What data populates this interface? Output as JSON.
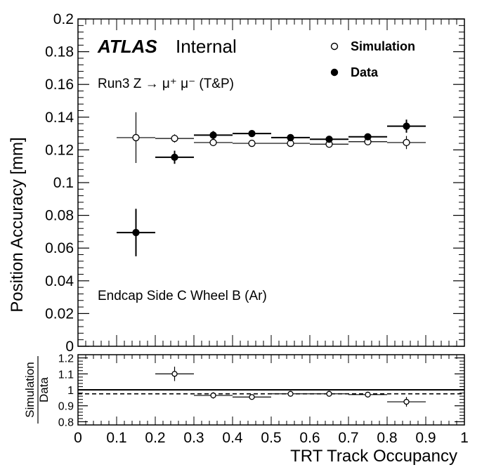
{
  "chart_data": [
    {
      "type": "scatter",
      "ylabel": "Position Accuracy [mm]",
      "ylim": [
        0,
        0.2
      ],
      "xlim": [
        0,
        1
      ],
      "y_ticks": [
        "0",
        "0.02",
        "0.04",
        "0.06",
        "0.08",
        "0.1",
        "0.12",
        "0.14",
        "0.16",
        "0.18",
        "0.2"
      ],
      "label_atlas": "ATLAS",
      "label_internal": "Internal",
      "annotation_process": "Run3 Z → μ⁺ μ⁻ (T&P)",
      "annotation_region": "Endcap Side C Wheel B (Ar)",
      "legend_position": "top-right",
      "series": [
        {
          "name": "Simulation",
          "marker": "open-circle",
          "x": [
            0.15,
            0.25,
            0.35,
            0.45,
            0.55,
            0.65,
            0.75,
            0.85
          ],
          "y": [
            0.1275,
            0.127,
            0.1245,
            0.124,
            0.124,
            0.1235,
            0.125,
            0.1245
          ],
          "yerr": [
            0.0155,
            0.0025,
            0.001,
            0.001,
            0.001,
            0.001,
            0.001,
            0.004
          ],
          "xerr": 0.05
        },
        {
          "name": "Data",
          "marker": "filled-circle",
          "x": [
            0.15,
            0.25,
            0.35,
            0.45,
            0.55,
            0.65,
            0.75,
            0.85
          ],
          "y": [
            0.0695,
            0.1155,
            0.129,
            0.13,
            0.1275,
            0.1265,
            0.128,
            0.1345
          ],
          "yerr": [
            0.0145,
            0.004,
            0.0025,
            0.001,
            0.001,
            0.001,
            0.0015,
            0.004
          ],
          "xerr": 0.05
        }
      ]
    },
    {
      "type": "scatter",
      "ylabel_numerator": "Simulation",
      "ylabel_denominator": "Data",
      "xlabel": "TRT Track Occupancy",
      "ylim": [
        0.78,
        1.22
      ],
      "xlim": [
        0,
        1
      ],
      "y_ticks": [
        "0.8",
        "0.9",
        "1",
        "1.1",
        "1.2"
      ],
      "x_ticks": [
        "0",
        "0.1",
        "0.2",
        "0.3",
        "0.4",
        "0.5",
        "0.6",
        "0.7",
        "0.8",
        "0.9",
        "1"
      ],
      "reference_line": 1.0,
      "mean_line": 0.975,
      "series": [
        {
          "name": "Simulation / Data",
          "x": [
            0.25,
            0.35,
            0.45,
            0.55,
            0.65,
            0.75,
            0.85
          ],
          "y": [
            1.1,
            0.965,
            0.955,
            0.975,
            0.975,
            0.97,
            0.925
          ],
          "yerr": [
            0.045,
            0.02,
            0.01,
            0.008,
            0.008,
            0.01,
            0.03
          ],
          "xerr": 0.05
        }
      ]
    }
  ]
}
